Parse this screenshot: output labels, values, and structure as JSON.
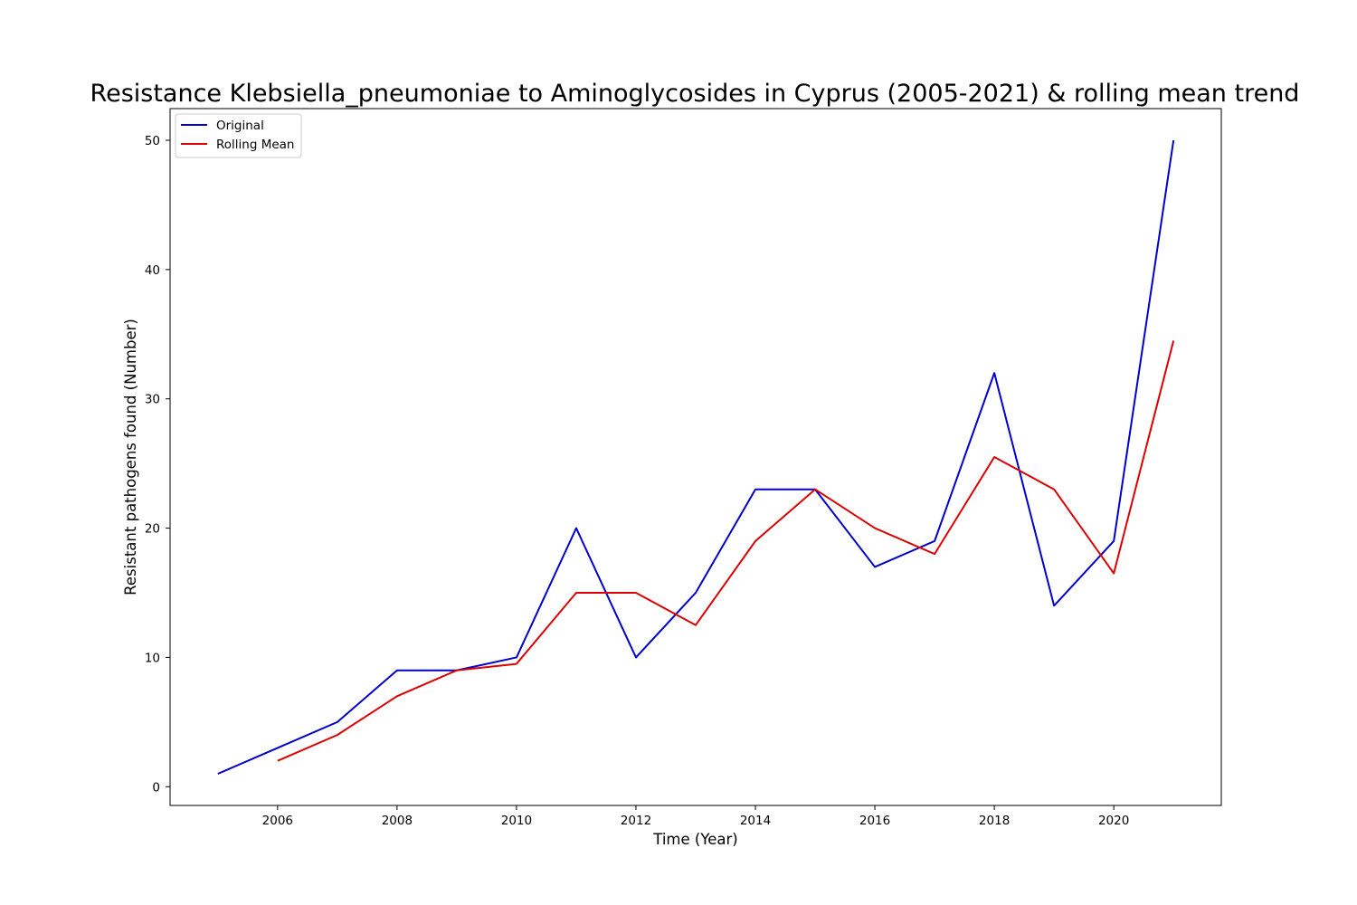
{
  "chart_data": {
    "type": "line",
    "title": "Resistance Klebsiella_pneumoniae to Aminoglycosides in Cyprus (2005-2021) & rolling mean trend",
    "xlabel": "Time (Year)",
    "ylabel": "Resistant pathogens found (Number)",
    "x": [
      2005,
      2006,
      2007,
      2008,
      2009,
      2010,
      2011,
      2012,
      2013,
      2014,
      2015,
      2016,
      2017,
      2018,
      2019,
      2020,
      2021
    ],
    "series": [
      {
        "name": "Original",
        "color": "#0000cc",
        "values": [
          1,
          3,
          5,
          9,
          9,
          10,
          20,
          10,
          15,
          23,
          23,
          17,
          19,
          32,
          14,
          19,
          50
        ]
      },
      {
        "name": "Rolling Mean",
        "color": "#dd0000",
        "values": [
          null,
          2,
          4,
          7,
          9,
          9.5,
          15,
          15,
          12.5,
          19,
          23,
          20,
          18,
          25.5,
          23,
          16.5,
          34.5
        ]
      }
    ],
    "xlim": [
      2004.2,
      2021.8
    ],
    "ylim": [
      -1.45,
      52.45
    ],
    "xticks": [
      2006,
      2008,
      2010,
      2012,
      2014,
      2016,
      2018,
      2020
    ],
    "xtick_labels": [
      "2006",
      "2008",
      "2010",
      "2012",
      "2014",
      "2016",
      "2018",
      "2020"
    ],
    "yticks": [
      0,
      10,
      20,
      30,
      40,
      50
    ],
    "ytick_labels": [
      "0",
      "10",
      "20",
      "30",
      "40",
      "50"
    ],
    "grid": false,
    "legend_position": "top-left"
  }
}
